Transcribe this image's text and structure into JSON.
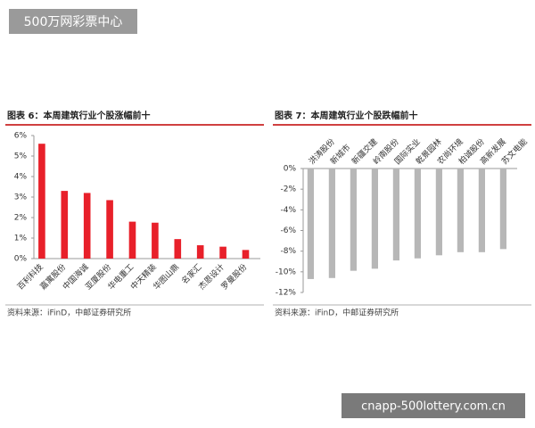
{
  "watermark_top": "500万网彩票中心",
  "watermark_bottom": "cnapp-500lottery.com.cn",
  "chart_data": [
    {
      "type": "bar",
      "title": "图表 6：本周建筑行业个股涨幅前十",
      "source": "资料来源：iFinD，中邮证券研究所",
      "categories": [
        "百利科技",
        "嘉寓股份",
        "中国海诚",
        "亚厦股份",
        "华电重工",
        "中天精装",
        "华图山鼎",
        "名家汇",
        "杰恩设计",
        "罗曼股份"
      ],
      "values": [
        5.6,
        3.3,
        3.2,
        2.85,
        1.8,
        1.75,
        0.95,
        0.65,
        0.58,
        0.42
      ],
      "color": "#e8202a",
      "ylim": [
        0,
        6
      ],
      "yticks": [
        {
          "value": 0,
          "label": "0%"
        },
        {
          "value": 1,
          "label": "1%"
        },
        {
          "value": 2,
          "label": "2%"
        },
        {
          "value": 3,
          "label": "3%"
        },
        {
          "value": 4,
          "label": "4%"
        },
        {
          "value": 5,
          "label": "5%"
        },
        {
          "value": 6,
          "label": "6%"
        }
      ]
    },
    {
      "type": "bar",
      "title": "图表 7：本周建筑行业个股跌幅前十",
      "source": "资料来源：iFinD，中邮证券研究所",
      "categories": [
        "洪涛股份",
        "新城市",
        "新疆交建",
        "岭南股份",
        "国际实业",
        "乾景园林",
        "农尚环境",
        "柏诚股份",
        "高新发展",
        "苏文电能"
      ],
      "values": [
        -10.7,
        -10.6,
        -9.9,
        -9.7,
        -8.9,
        -8.7,
        -8.4,
        -8.1,
        -8.1,
        -7.8
      ],
      "color": "#b7b7b7",
      "ylim": [
        -12,
        0
      ],
      "yticks": [
        {
          "value": 0,
          "label": "0%"
        },
        {
          "value": -2,
          "label": "-2%"
        },
        {
          "value": -4,
          "label": "-4%"
        },
        {
          "value": -6,
          "label": "-6%"
        },
        {
          "value": -8,
          "label": "-8%"
        },
        {
          "value": -10,
          "label": "-10%"
        },
        {
          "value": -12,
          "label": "-12%"
        }
      ]
    }
  ]
}
